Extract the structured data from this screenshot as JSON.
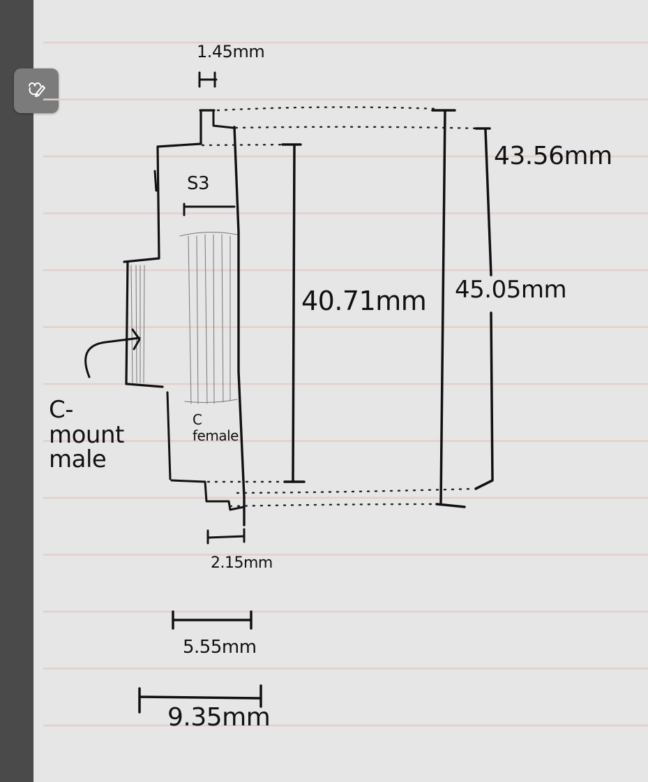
{
  "toolbar": {
    "tool_icon": "pen-hand-icon"
  },
  "paper": {
    "rule_color": "#e3cfcc",
    "background": "#e6e6e6",
    "rail_color": "#4a4a4a"
  },
  "sketch": {
    "labels": {
      "gap_top": "1.45mm",
      "inner_height": "43.56mm",
      "outer_height": "45.05mm",
      "bore_height": "40.71mm",
      "flange": "S3",
      "female": "C female",
      "male": "C-mount male",
      "bottom_step": "2.15mm",
      "width_mid": "5.55mm",
      "width_total": "9.35mm"
    }
  }
}
